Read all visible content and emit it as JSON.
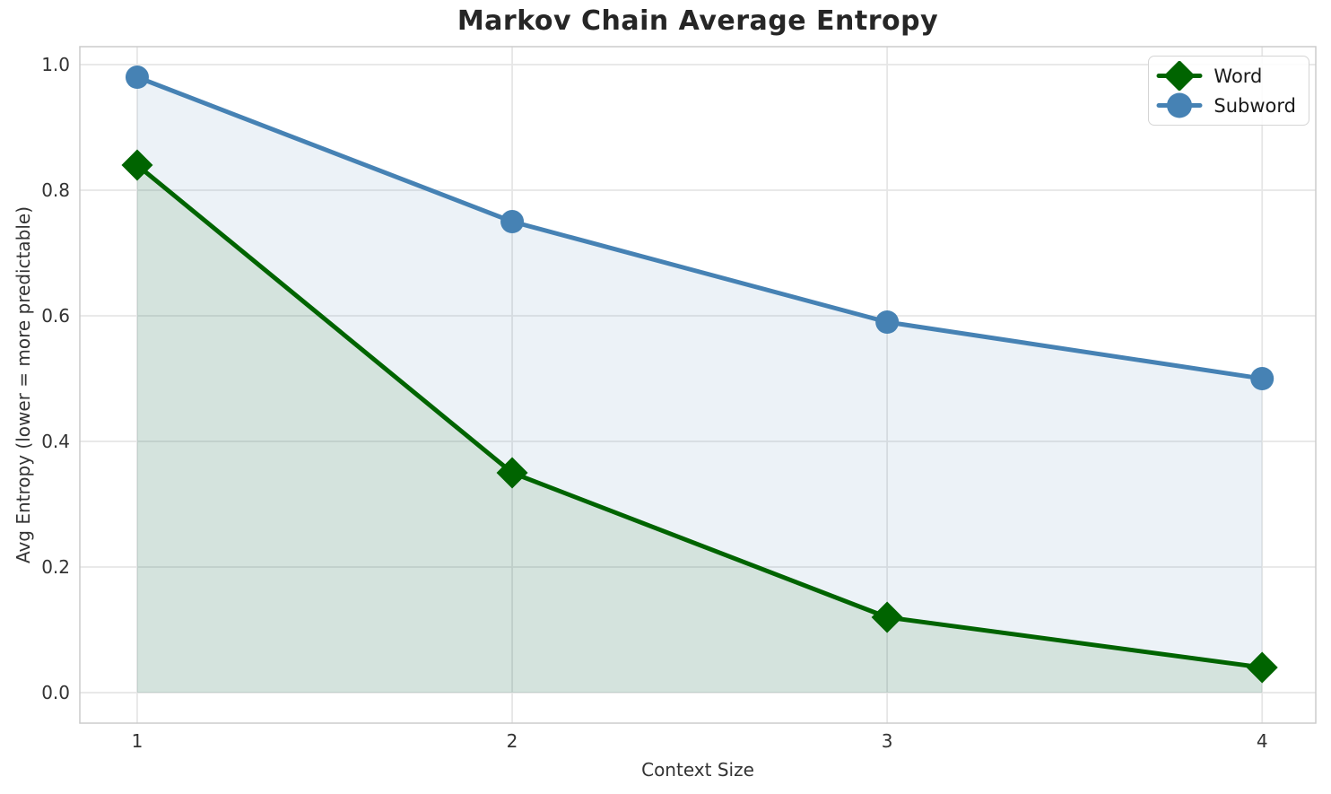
{
  "chart_data": {
    "type": "line",
    "title": "Markov Chain Average Entropy",
    "xlabel": "Context Size",
    "ylabel": "Avg Entropy (lower = more predictable)",
    "x": [
      1,
      2,
      3,
      4
    ],
    "series": [
      {
        "name": "Word",
        "values": [
          0.84,
          0.35,
          0.12,
          0.04
        ],
        "color": "#006400",
        "fill": "rgba(0,100,0,0.10)",
        "marker": "diamond"
      },
      {
        "name": "Subword",
        "values": [
          0.98,
          0.75,
          0.59,
          0.5
        ],
        "color": "#4682b4",
        "fill": "rgba(70,130,180,0.10)",
        "marker": "circle"
      }
    ],
    "xticks": [
      1,
      2,
      3,
      4
    ],
    "yticks": [
      0.0,
      0.2,
      0.4,
      0.6,
      0.8,
      1.0
    ],
    "xlim": [
      0.847,
      4.143
    ],
    "ylim": [
      -0.0486,
      1.0286
    ],
    "grid": true,
    "legend_position": "upper right",
    "colors": {
      "grid": "#e6e6e6",
      "spine": "#cccccc",
      "title": "#262626",
      "tick_text": "#333333",
      "background": "#ffffff"
    }
  }
}
